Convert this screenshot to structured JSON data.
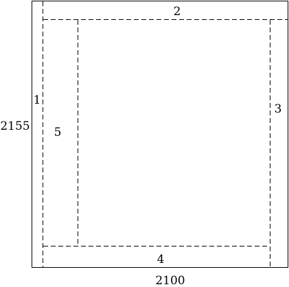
{
  "diagram": {
    "outer": {
      "width_label": "2100",
      "height_label": "2155"
    },
    "regions": [
      {
        "id": "1",
        "label": "1"
      },
      {
        "id": "2",
        "label": "2"
      },
      {
        "id": "3",
        "label": "3"
      },
      {
        "id": "4",
        "label": "4"
      },
      {
        "id": "5",
        "label": "5"
      }
    ],
    "colors": {
      "line": "#000000",
      "background": "#ffffff"
    }
  }
}
